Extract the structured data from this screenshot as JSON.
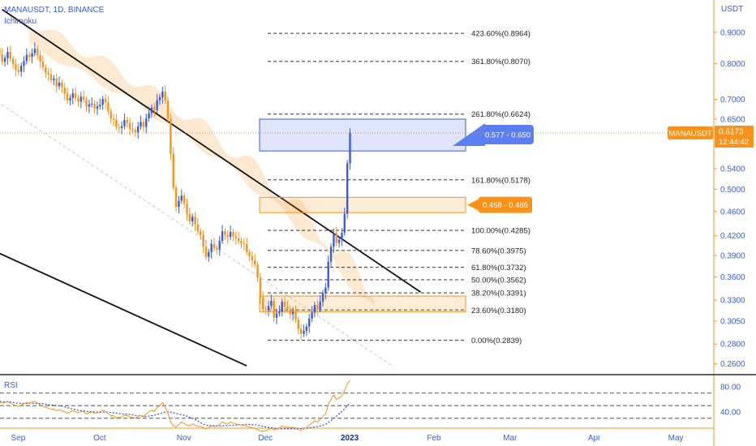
{
  "header": {
    "symbol_line": "MANAUSDT, 1D, BINANCE",
    "indicator": "Ichimoku"
  },
  "price_axis": {
    "currency_label": "USDT",
    "ticks": [
      "0.9000",
      "0.8000",
      "0.7000",
      "0.6500",
      "0.5400",
      "0.5000",
      "0.4600",
      "0.4200",
      "0.3900",
      "0.3600",
      "0.3300",
      "0.3050",
      "0.2800",
      "0.2600"
    ]
  },
  "current_price": {
    "symbol_tag": "MANAUSDT",
    "price": "0.6173",
    "countdown": "12:44:42",
    "color": "#f7931a"
  },
  "fib_levels": [
    {
      "label": "423.60%(0.8964)"
    },
    {
      "label": "361.80%(0.8070)"
    },
    {
      "label": "261.80%(0.6624)"
    },
    {
      "label": "161.80%(0.5178)"
    },
    {
      "label": "100.00%(0.4285)"
    },
    {
      "label": "78.60%(0.3975)"
    },
    {
      "label": "61.80%(0.3732)"
    },
    {
      "label": "50.00%(0.3562)"
    },
    {
      "label": "38.20%(0.3391)"
    },
    {
      "label": "23.60%(0.3180)"
    },
    {
      "label": "0.00%(0.2839)"
    }
  ],
  "zones": [
    {
      "label": "0.577 - 0.650",
      "color": "#5b7ff0"
    },
    {
      "label": "0.458 - 0.485",
      "color": "#f7931a"
    }
  ],
  "rsi": {
    "title": "RSI",
    "ticks": [
      "80.00",
      "40.00"
    ]
  },
  "time_axis": {
    "ticks": [
      "Sep",
      "Oct",
      "Nov",
      "Dec",
      "2023",
      "Feb",
      "Mar",
      "Apr",
      "May"
    ]
  },
  "chart_data": {
    "type": "candlestick",
    "x_start": "2022-08-28",
    "days": 140,
    "colors": {
      "up": "#3b5bdb",
      "down": "#f7931a",
      "cloud": "#fbd9b4"
    },
    "close": [
      0.849,
      0.828,
      0.806,
      0.817,
      0.836,
      0.815,
      0.799,
      0.782,
      0.776,
      0.794,
      0.808,
      0.827,
      0.821,
      0.832,
      0.846,
      0.826,
      0.806,
      0.789,
      0.773,
      0.768,
      0.752,
      0.757,
      0.735,
      0.745,
      0.731,
      0.715,
      0.697,
      0.704,
      0.716,
      0.704,
      0.694,
      0.707,
      0.699,
      0.681,
      0.687,
      0.689,
      0.676,
      0.682,
      0.686,
      0.701,
      0.692,
      0.669,
      0.651,
      0.648,
      0.631,
      0.629,
      0.633,
      0.648,
      0.641,
      0.627,
      0.624,
      0.619,
      0.632,
      0.643,
      0.631,
      0.652,
      0.665,
      0.679,
      0.672,
      0.698,
      0.706,
      0.721,
      0.697,
      0.651,
      0.571,
      0.503,
      0.468,
      0.479,
      0.488,
      0.474,
      0.456,
      0.443,
      0.451,
      0.438,
      0.427,
      0.421,
      0.403,
      0.388,
      0.395,
      0.407,
      0.401,
      0.399,
      0.412,
      0.427,
      0.421,
      0.418,
      0.426,
      0.419,
      0.416,
      0.412,
      0.408,
      0.407,
      0.395,
      0.389,
      0.383,
      0.377,
      0.359,
      0.333,
      0.319,
      0.318,
      0.323,
      0.329,
      0.309,
      0.314,
      0.316,
      0.328,
      0.322,
      0.319,
      0.313,
      0.316,
      0.307,
      0.296,
      0.291,
      0.294,
      0.299,
      0.308,
      0.315,
      0.324,
      0.319,
      0.328,
      0.339,
      0.346,
      0.381,
      0.403,
      0.424,
      0.409,
      0.414,
      0.425,
      0.456,
      0.551,
      0.617
    ],
    "ichimoku_cloud": {
      "x_start_index": 12,
      "top_start": 0.935,
      "top_end": 0.331,
      "bottom_start": 0.856,
      "bottom_end": 0.315
    },
    "trendlines": [
      {
        "from": [
          "2022-08-30",
          0.98
        ],
        "to": [
          "2023-01-31",
          0.34
        ]
      },
      {
        "from": [
          "2022-08-28",
          0.395
        ],
        "to": [
          "2022-11-28",
          0.258
        ]
      }
    ],
    "dashed_channel": {
      "from": [
        "2022-08-28",
        0.695
      ],
      "to": [
        "2023-01-20",
        0.259
      ]
    },
    "rsi_values": [
      58,
      56,
      54,
      55,
      57,
      54,
      52,
      50,
      49,
      51,
      53,
      55,
      54,
      56,
      57,
      54,
      51,
      49,
      47,
      46,
      44,
      45,
      42,
      44,
      42,
      40,
      38,
      40,
      42,
      40,
      39,
      41,
      40,
      37,
      39,
      40,
      38,
      39,
      40,
      43,
      41,
      37,
      34,
      34,
      31,
      31,
      32,
      35,
      34,
      32,
      31,
      30,
      33,
      35,
      33,
      37,
      40,
      43,
      41,
      47,
      50,
      55,
      48,
      38,
      24,
      18,
      16,
      20,
      24,
      22,
      19,
      18,
      21,
      19,
      17,
      17,
      15,
      13,
      15,
      18,
      17,
      17,
      20,
      24,
      22,
      21,
      24,
      22,
      21,
      20,
      19,
      19,
      17,
      16,
      15,
      14,
      12,
      10,
      9,
      10,
      12,
      14,
      11,
      13,
      14,
      18,
      16,
      16,
      15,
      16,
      14,
      12,
      11,
      13,
      15,
      19,
      22,
      26,
      24,
      28,
      33,
      37,
      52,
      60,
      67,
      60,
      62,
      66,
      74,
      85,
      90
    ],
    "rsi_scale": {
      "top_value": 80,
      "bottom_value": 40
    },
    "rsi_levels": [
      70,
      50,
      30
    ]
  }
}
